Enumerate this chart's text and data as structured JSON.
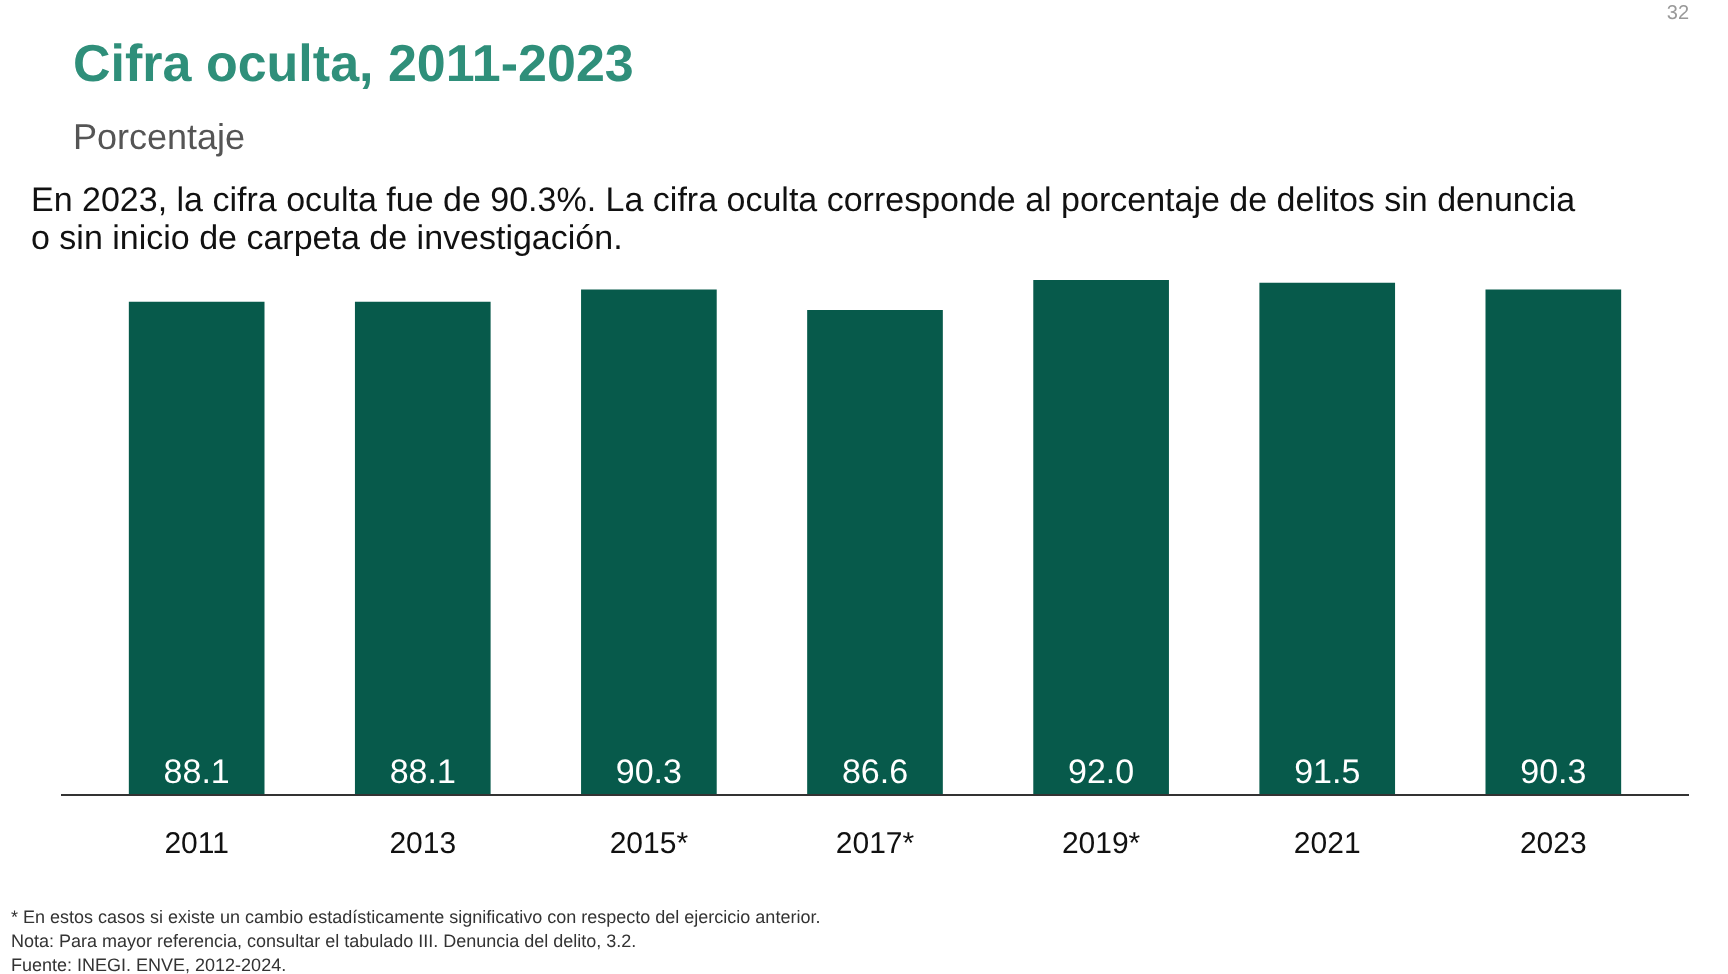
{
  "chart_data": {
    "type": "bar",
    "title": "Cifra oculta, 2011-2023",
    "subtitle": "Porcentaje",
    "categories": [
      "2011",
      "2013",
      "2015*",
      "2017*",
      "2019*",
      "2021",
      "2023"
    ],
    "values": [
      88.1,
      88.1,
      90.3,
      86.6,
      92.0,
      91.5,
      90.3
    ],
    "color": "#075a4b",
    "value_labels": [
      "88.1",
      "88.1",
      "90.3",
      "86.6",
      "92.0",
      "91.5",
      "90.3"
    ],
    "grid": false,
    "annotations": [
      "32",
      "En 2023, la cifra oculta fue de 90.3%. La cifra oculta corresponde al porcentaje de delitos sin denuncia\no sin inicio de carpeta de investigación.",
      "* En estos casos si existe un cambio estadísticamente significativo con respecto del ejercicio anterior.",
      "Nota: Para mayor referencia, consultar el tabulado III. Denuncia del delito, 3.2.",
      "Fuente: INEGI. ENVE, 2012-2024."
    ]
  }
}
